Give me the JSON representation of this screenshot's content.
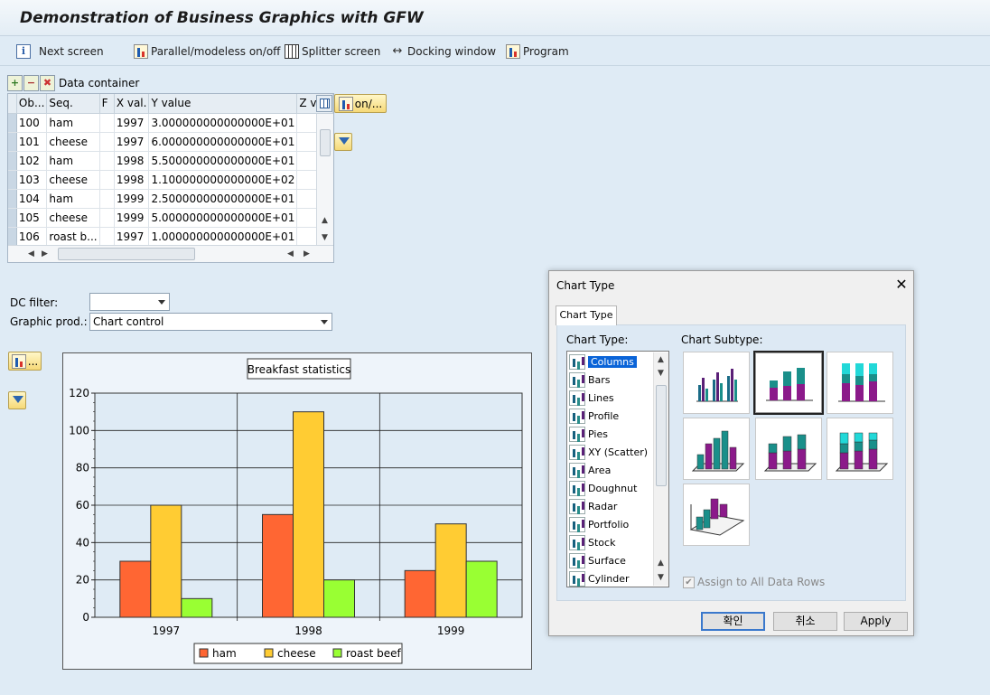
{
  "app": {
    "title": "Demonstration of Business Graphics with GFW"
  },
  "toolbar": {
    "items": [
      {
        "label": "Next screen",
        "icon": "next-screen-icon"
      },
      {
        "label": "Parallel/modeless on/off",
        "icon": "chart-icon"
      },
      {
        "label": "Splitter screen",
        "icon": "splitter-icon"
      },
      {
        "label": "Docking window",
        "icon": "docking-icon"
      },
      {
        "label": "Program",
        "icon": "chart-icon"
      }
    ]
  },
  "data_container": {
    "label": "Data container",
    "columns": [
      "Ob...",
      "Seq.",
      "F",
      "X val.",
      "Y value",
      "Z val."
    ],
    "rows": [
      [
        "100",
        "ham",
        "",
        "1997",
        "3.000000000000000E+01",
        ""
      ],
      [
        "101",
        "cheese",
        "",
        "1997",
        "6.000000000000000E+01",
        ""
      ],
      [
        "102",
        "ham",
        "",
        "1998",
        "5.500000000000000E+01",
        ""
      ],
      [
        "103",
        "cheese",
        "",
        "1998",
        "1.100000000000000E+02",
        ""
      ],
      [
        "104",
        "ham",
        "",
        "1999",
        "2.500000000000000E+01",
        ""
      ],
      [
        "105",
        "cheese",
        "",
        "1999",
        "5.000000000000000E+01",
        ""
      ],
      [
        "106",
        "roast b...",
        "",
        "1997",
        "1.000000000000000E+01",
        ""
      ]
    ],
    "toggle_label": "on/..."
  },
  "form": {
    "dc_filter_label": "DC filter:",
    "dc_filter_value": "",
    "graphic_prod_label": "Graphic prod.:",
    "graphic_prod_value": "Chart control"
  },
  "chart_button_label": "...",
  "chart_data": {
    "type": "bar",
    "title": "Breakfast statistics",
    "categories": [
      "1997",
      "1998",
      "1999"
    ],
    "series": [
      {
        "name": "ham",
        "values": [
          30,
          55,
          25
        ],
        "color": "#ff6633"
      },
      {
        "name": "cheese",
        "values": [
          60,
          110,
          50
        ],
        "color": "#ffcc33"
      },
      {
        "name": "roast beef",
        "values": [
          10,
          20,
          30
        ],
        "color": "#99ff33"
      }
    ],
    "ylim": [
      0,
      120
    ],
    "yticks": [
      0,
      20,
      40,
      60,
      80,
      100,
      120
    ],
    "grid": true,
    "legend_position": "bottom"
  },
  "dialog": {
    "title": "Chart Type",
    "tab_label": "Chart Type",
    "chart_type_label": "Chart Type:",
    "chart_subtype_label": "Chart Subtype:",
    "chart_types": [
      "Columns",
      "Bars",
      "Lines",
      "Profile",
      "Pies",
      "XY (Scatter)",
      "Area",
      "Doughnut",
      "Radar",
      "Portfolio",
      "Stock",
      "Surface",
      "Cylinder"
    ],
    "selected_type": "Columns",
    "assign_label": "Assign to All Data Rows",
    "assign_checked": true,
    "ok_label": "확인",
    "cancel_label": "취소",
    "apply_label": "Apply"
  }
}
